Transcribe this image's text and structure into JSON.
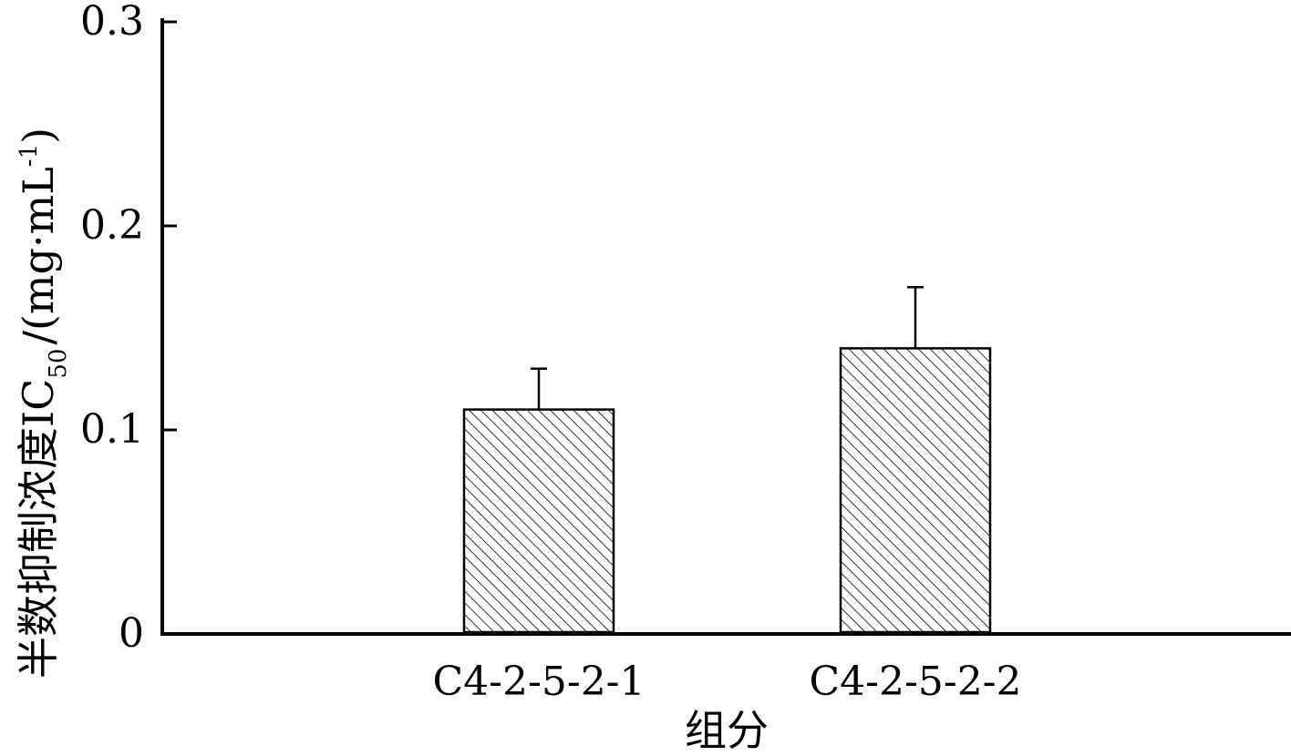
{
  "chart_data": {
    "type": "bar",
    "categories": [
      "C4-2-5-2-1",
      "C4-2-5-2-2"
    ],
    "values": [
      0.11,
      0.14
    ],
    "errors": [
      0.02,
      0.03
    ],
    "xlabel": "组分",
    "ylabel": "半数抑制浓度IC50/(mg·mL-1)",
    "ylabel_parts": {
      "main": "半数抑制浓度IC",
      "subscript": "50",
      "unit": "/(mg·mL",
      "superscript": "-1",
      "close": ")"
    },
    "ylim": [
      0,
      0.3
    ],
    "yticks": [
      0,
      0.1,
      0.2,
      0.3
    ],
    "ytick_labels": [
      "0",
      "0.1",
      "0.2",
      "0.3"
    ],
    "bar_fill": "diagonal-hatch",
    "colors": {
      "axis": "#000000",
      "bar_edge": "#000000",
      "bar_face": "#ffffff"
    },
    "grid": false,
    "legend": "none"
  }
}
